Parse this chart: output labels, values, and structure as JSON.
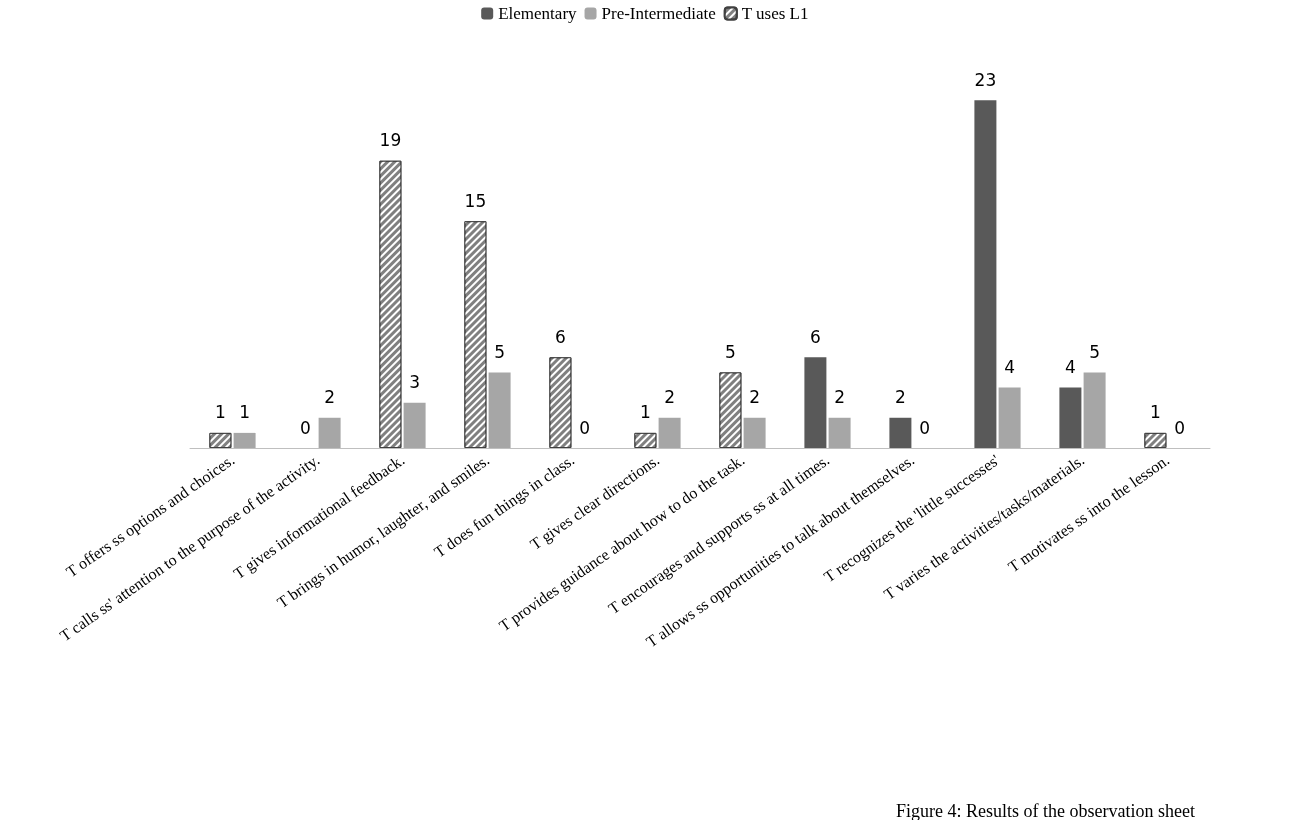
{
  "chart_data": {
    "type": "bar",
    "categories": [
      "T offers ss options and choices.",
      "T calls ss' attention to the purpose of the activity.",
      "T gives informational feedback.",
      "T brings in humor, laughter, and smiles.",
      "T does fun things in class.",
      "T gives clear directions.",
      "T provides guidance about how to do the task.",
      "T encourages and supports ss at all times.",
      "T allows ss opportunities to talk about themselves.",
      "T recognizes the 'little successes'",
      "T varies the activities/tasks/materials.",
      "T motivates ss into the lesson."
    ],
    "series": [
      {
        "name": "Elementary",
        "color": "#595959",
        "values": [
          null,
          0,
          null,
          null,
          null,
          null,
          null,
          6,
          2,
          23,
          4,
          null
        ]
      },
      {
        "name": "Pre-Intermediate",
        "color": "#a6a6a6",
        "values": [
          1,
          2,
          3,
          5,
          0,
          2,
          2,
          2,
          0,
          4,
          5,
          0
        ]
      },
      {
        "name": "T uses L1",
        "color": "#808080",
        "values": [
          1,
          null,
          19,
          15,
          6,
          1,
          5,
          null,
          null,
          null,
          null,
          1
        ]
      }
    ],
    "data_labels": true,
    "legend": "top",
    "annotations": [
      "Figure 4: Results of the observation sheet"
    ]
  }
}
